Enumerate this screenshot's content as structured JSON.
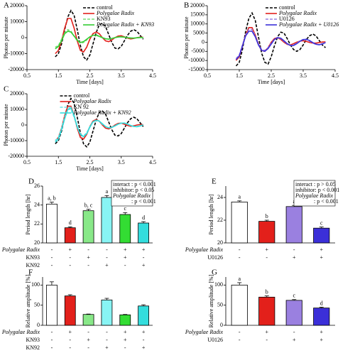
{
  "chart_data": [
    {
      "type": "line",
      "panel": "A",
      "xlabel": "Time [days]",
      "ylabel": "Photon per minute",
      "xlim": [
        0.5,
        4.5
      ],
      "xticks": [
        0.5,
        1.5,
        2.5,
        3.5,
        4.5
      ],
      "ylim": [
        -20000,
        20000
      ],
      "yticks": [
        -20000,
        -10000,
        0,
        10000,
        20000
      ],
      "legend": "upper right",
      "x": [
        1.4,
        1.5,
        1.6,
        1.7,
        1.8,
        1.9,
        2.0,
        2.1,
        2.2,
        2.3,
        2.4,
        2.5,
        2.6,
        2.7,
        2.8,
        2.9,
        3.0,
        3.1,
        3.2,
        3.3,
        3.4,
        3.5,
        3.6,
        3.7,
        3.8,
        3.9,
        4.0,
        4.1,
        4.2
      ],
      "series": [
        {
          "name": "control",
          "color": "#000000",
          "style": "dashed",
          "values": [
            -12000,
            -10000,
            -4000,
            5000,
            13000,
            17000,
            14000,
            5000,
            -5000,
            -12000,
            -14000,
            -11000,
            -4000,
            3000,
            8000,
            9000,
            7000,
            2000,
            -3000,
            -6500,
            -7000,
            -5500,
            -2000,
            1500,
            4000,
            5000,
            4000,
            1500,
            -1000
          ]
        },
        {
          "name": "Polygalae Radix",
          "color": "#e3201b",
          "style": "solid",
          "values": [
            -10000,
            -8000,
            -2000,
            6000,
            12000,
            12000,
            6000,
            -2000,
            -8000,
            -9000,
            -6000,
            -1000,
            2500,
            3500,
            2500,
            0,
            -2000,
            -2500,
            -1500,
            0,
            1000,
            1200,
            500,
            -300,
            -800,
            -500,
            0,
            300,
            200
          ]
        },
        {
          "name": "KN93",
          "color": "#77dd77",
          "style": "dashed",
          "values": [
            -6000,
            -5000,
            -1000,
            3000,
            5000,
            4000,
            1000,
            -2000,
            -3500,
            -3000,
            -1500,
            500,
            1500,
            1800,
            1000,
            0,
            -800,
            -1000,
            -600,
            0,
            400,
            500,
            300,
            0,
            -300,
            -300,
            -100,
            100,
            100
          ]
        },
        {
          "name": "Polygalae Radix + KN93",
          "color": "#33cc33",
          "style": "solid",
          "values": [
            -7000,
            -5500,
            -2000,
            2500,
            4000,
            3500,
            1000,
            -1500,
            -3000,
            -2500,
            -1000,
            500,
            1500,
            1500,
            800,
            0,
            -700,
            -900,
            -500,
            0,
            400,
            500,
            300,
            0,
            -200,
            -300,
            -100,
            100,
            100
          ]
        }
      ]
    },
    {
      "type": "line",
      "panel": "B",
      "xlabel": "Time [days]",
      "ylabel": "Photon per minute",
      "xlim": [
        0.5,
        4.5
      ],
      "xticks": [
        0.5,
        1.5,
        2.5,
        3.5,
        4.5
      ],
      "ylim": [
        -15000,
        20000
      ],
      "yticks": [
        -15000,
        -10000,
        -5000,
        0,
        5000,
        10000,
        15000,
        20000
      ],
      "legend": "upper right",
      "x": [
        1.4,
        1.5,
        1.6,
        1.7,
        1.8,
        1.9,
        2.0,
        2.1,
        2.2,
        2.3,
        2.4,
        2.5,
        2.6,
        2.7,
        2.8,
        2.9,
        3.0,
        3.1,
        3.2,
        3.3,
        3.4,
        3.5,
        3.6,
        3.7,
        3.8,
        3.9,
        4.0,
        4.1,
        4.2
      ],
      "series": [
        {
          "name": "control",
          "color": "#000000",
          "style": "dashed",
          "values": [
            -13000,
            -11000,
            -4000,
            6000,
            13000,
            16000,
            12000,
            3000,
            -6000,
            -11000,
            -12000,
            -8000,
            -2000,
            3000,
            5500,
            5000,
            2000,
            -1500,
            -4000,
            -5000,
            -4000,
            -1500,
            1500,
            3500,
            4500,
            3500,
            1000,
            -1500,
            -3000
          ]
        },
        {
          "name": "Polygalae Radix",
          "color": "#e3201b",
          "style": "solid",
          "values": [
            -10000,
            -8000,
            -2000,
            4000,
            8000,
            8000,
            4000,
            -1000,
            -4500,
            -5000,
            -3000,
            0,
            2000,
            2500,
            1500,
            0,
            -1200,
            -1500,
            -800,
            0,
            600,
            800,
            400,
            -100,
            -500,
            -500,
            -200,
            100,
            200
          ]
        },
        {
          "name": "U0126",
          "color": "#9a80e0",
          "style": "dashed",
          "values": [
            -9000,
            -7000,
            -1500,
            4000,
            7000,
            7000,
            3500,
            -1000,
            -4000,
            -4500,
            -3000,
            -500,
            1500,
            2500,
            2000,
            500,
            -1000,
            -1800,
            -1500,
            -500,
            700,
            1500,
            1500,
            600,
            -500,
            -1200,
            -1300,
            -800,
            0
          ]
        },
        {
          "name": "Polygalae Radix + U0126",
          "color": "#3b2fd8",
          "style": "solid",
          "values": [
            -9500,
            -7500,
            -2000,
            3500,
            6000,
            6000,
            3000,
            -1500,
            -4500,
            -5000,
            -3500,
            -1000,
            1500,
            2500,
            2200,
            800,
            -800,
            -1800,
            -1800,
            -800,
            500,
            1400,
            1600,
            900,
            -200,
            -1100,
            -1400,
            -1000,
            -200
          ]
        }
      ]
    },
    {
      "type": "line",
      "panel": "C",
      "xlabel": "Time [days]",
      "ylabel": "Photon per minute",
      "xlim": [
        0.5,
        4.5
      ],
      "xticks": [
        0.5,
        1.5,
        2.5,
        3.5,
        4.5
      ],
      "ylim": [
        -20000,
        20000
      ],
      "yticks": [
        -20000,
        -10000,
        0,
        10000,
        20000
      ],
      "legend": "upper center",
      "x": [
        1.4,
        1.5,
        1.6,
        1.7,
        1.8,
        1.9,
        2.0,
        2.1,
        2.2,
        2.3,
        2.4,
        2.5,
        2.6,
        2.7,
        2.8,
        2.9,
        3.0,
        3.1,
        3.2,
        3.3,
        3.4,
        3.5,
        3.6,
        3.7,
        3.8,
        3.9,
        4.0,
        4.1,
        4.2
      ],
      "series": [
        {
          "name": "control",
          "color": "#000000",
          "style": "dashed",
          "values": [
            -12000,
            -10000,
            -4000,
            5000,
            13000,
            17000,
            14000,
            5000,
            -5000,
            -12000,
            -14000,
            -11000,
            -4000,
            3000,
            8000,
            9000,
            7000,
            2000,
            -3000,
            -6500,
            -7000,
            -5500,
            -2000,
            1500,
            4000,
            5000,
            4000,
            1500,
            -1000
          ]
        },
        {
          "name": "Polygalae Radix",
          "color": "#e3201b",
          "style": "solid",
          "values": [
            -10000,
            -8000,
            -2000,
            6000,
            12000,
            12000,
            6000,
            -2000,
            -8000,
            -9000,
            -6000,
            -1000,
            2500,
            3500,
            2500,
            0,
            -2000,
            -2500,
            -1500,
            0,
            1000,
            1200,
            500,
            -300,
            -800,
            -500,
            0,
            300,
            200
          ]
        },
        {
          "name": "KN 92",
          "color": "#66e6e6",
          "style": "dashed",
          "values": [
            -10000,
            -8000,
            -2000,
            5000,
            10000,
            10000,
            5000,
            -1500,
            -6000,
            -7000,
            -5000,
            -1000,
            2000,
            3000,
            2500,
            500,
            -1000,
            -1800,
            -1500,
            -500,
            500,
            1200,
            1200,
            500,
            -400,
            -1000,
            -1000,
            -500,
            100
          ]
        },
        {
          "name": "Polygalae Radix + KN92",
          "color": "#33dddd",
          "style": "solid",
          "values": [
            -11000,
            -9000,
            -3000,
            4000,
            10000,
            11000,
            6000,
            -1000,
            -6000,
            -7500,
            -5500,
            -1500,
            2000,
            3000,
            2500,
            800,
            -1000,
            -1800,
            -1600,
            -600,
            500,
            1200,
            1300,
            600,
            -300,
            -900,
            -1100,
            -600,
            0
          ]
        }
      ]
    },
    {
      "type": "bar",
      "panel": "D",
      "ylabel": "Period length [hr]",
      "ylim": [
        20,
        26
      ],
      "yticks": [
        20,
        22,
        24,
        26
      ],
      "values": [
        24.1,
        21.6,
        23.4,
        24.8,
        23.0,
        22.1
      ],
      "errors": [
        0.2,
        0.1,
        0.15,
        0.2,
        0.2,
        0.15
      ],
      "colors": [
        "#ffffff",
        "#e3201b",
        "#88e888",
        "#88f4f4",
        "#33dd33",
        "#33dddd"
      ],
      "bar_labels": [
        "a, b",
        "d",
        "b, c",
        "a",
        "c",
        "d"
      ],
      "annotation": [
        "interact : p < 0.001",
        "inhibitor: p < 0.05",
        "Polygalae Radix",
        ": p < 0.001"
      ],
      "treatments": [
        {
          "label": "Polygalae Radix",
          "marks": [
            "-",
            "+",
            "-",
            "-",
            "+",
            "+"
          ]
        },
        {
          "label": "KN93",
          "marks": [
            "-",
            "-",
            "+",
            "-",
            "+",
            "-"
          ]
        },
        {
          "label": "KN92",
          "marks": [
            "-",
            "-",
            "-",
            "+",
            "-",
            "+"
          ]
        }
      ]
    },
    {
      "type": "bar",
      "panel": "E",
      "ylabel": "Period length [hr]",
      "ylim": [
        20,
        25
      ],
      "yticks": [
        20,
        22,
        24
      ],
      "values": [
        23.6,
        21.9,
        23.2,
        21.3
      ],
      "errors": [
        0.1,
        0.1,
        0.1,
        0.1
      ],
      "colors": [
        "#ffffff",
        "#e3201b",
        "#9a80e0",
        "#3b2fd8"
      ],
      "bar_labels": [
        "a",
        "b",
        "a",
        "c"
      ],
      "annotation": [
        "interact : p > 0.05",
        "inhibitor: p < 0.001",
        "Polygalae Radix",
        ": p < 0.001"
      ],
      "treatments": [
        {
          "label": "Polygalae Radix",
          "marks": [
            "-",
            "+",
            "-",
            "+"
          ]
        },
        {
          "label": "U0126",
          "marks": [
            "-",
            "-",
            "+",
            "+"
          ]
        }
      ]
    },
    {
      "type": "bar",
      "panel": "F",
      "ylabel": "Relative amplitude [%]",
      "ylim": [
        0,
        120
      ],
      "yticks": [
        0,
        50,
        100
      ],
      "values": [
        100,
        73,
        27,
        63,
        26,
        48
      ],
      "errors": [
        8,
        3,
        1,
        4,
        1,
        3
      ],
      "colors": [
        "#ffffff",
        "#e3201b",
        "#88e888",
        "#88f4f4",
        "#33dd33",
        "#33dddd"
      ],
      "treatments": [
        {
          "label": "Polygalae Radix",
          "marks": [
            "-",
            "+",
            "-",
            "-",
            "+",
            "+"
          ]
        },
        {
          "label": "KN93",
          "marks": [
            "-",
            "-",
            "+",
            "-",
            "+",
            "-"
          ]
        },
        {
          "label": "KN92",
          "marks": [
            "-",
            "-",
            "-",
            "+",
            "-",
            "+"
          ]
        }
      ]
    },
    {
      "type": "bar",
      "panel": "G",
      "ylabel": "Relative amplitude [%]",
      "ylim": [
        0,
        120
      ],
      "yticks": [
        0,
        50,
        100
      ],
      "values": [
        100,
        70,
        62,
        43
      ],
      "errors": [
        6,
        3,
        2,
        2
      ],
      "colors": [
        "#ffffff",
        "#e3201b",
        "#9a80e0",
        "#3b2fd8"
      ],
      "bar_labels": [
        "a",
        "b",
        "c",
        "d"
      ],
      "treatments": [
        {
          "label": "Polygalae Radix",
          "marks": [
            "-",
            "+",
            "-",
            "+"
          ]
        },
        {
          "label": "U0126",
          "marks": [
            "-",
            "-",
            "+",
            "+"
          ]
        }
      ]
    }
  ]
}
